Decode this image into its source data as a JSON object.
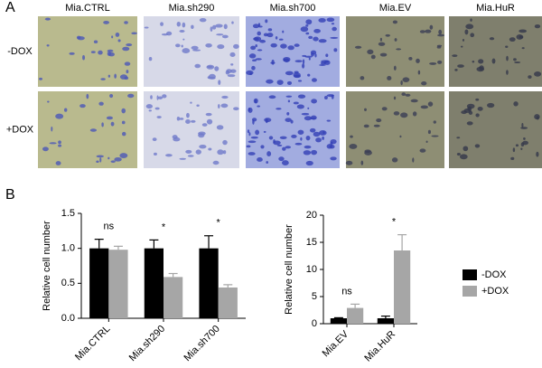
{
  "panel_a": {
    "label": "A",
    "columns": [
      "Mia.CTRL",
      "Mia.sh290",
      "Mia.sh700",
      "Mia.EV",
      "Mia.HuR"
    ],
    "rows": [
      "-DOX",
      "+DOX"
    ]
  },
  "panel_b_label": "B",
  "chart_data": [
    {
      "type": "bar",
      "ylabel": "Relative cell number",
      "categories": [
        "Mia.CTRL",
        "Mia.sh290",
        "Mia.sh700"
      ],
      "series": [
        {
          "name": "-DOX",
          "color": "#000000",
          "values": [
            1.0,
            1.0,
            1.0
          ],
          "errors": [
            0.13,
            0.12,
            0.18
          ]
        },
        {
          "name": "+DOX",
          "color": "#a6a6a6",
          "values": [
            0.98,
            0.59,
            0.44
          ],
          "errors": [
            0.05,
            0.05,
            0.04
          ]
        }
      ],
      "annotations": [
        "ns",
        "*",
        "*"
      ],
      "ylim": [
        0,
        1.5
      ],
      "yticks": [
        {
          "value": 0,
          "label": "0.0"
        },
        0.5,
        {
          "value": 1,
          "label": "1.0"
        },
        1.5
      ]
    },
    {
      "type": "bar",
      "ylabel": "Relative cell number",
      "categories": [
        "Mia.EV",
        "Mia.HuR"
      ],
      "series": [
        {
          "color": "#000000",
          "values": [
            1,
            1
          ],
          "errors": [
            0.1,
            0.4
          ]
        },
        {
          "color": "#a6a6a6",
          "values": [
            2.9,
            13.5
          ],
          "errors": [
            0.7,
            2.9
          ]
        }
      ],
      "annotations": [
        "ns",
        "*"
      ],
      "ylim": [
        0,
        20
      ],
      "yticks": [
        0,
        5,
        10,
        15,
        20
      ]
    }
  ]
}
